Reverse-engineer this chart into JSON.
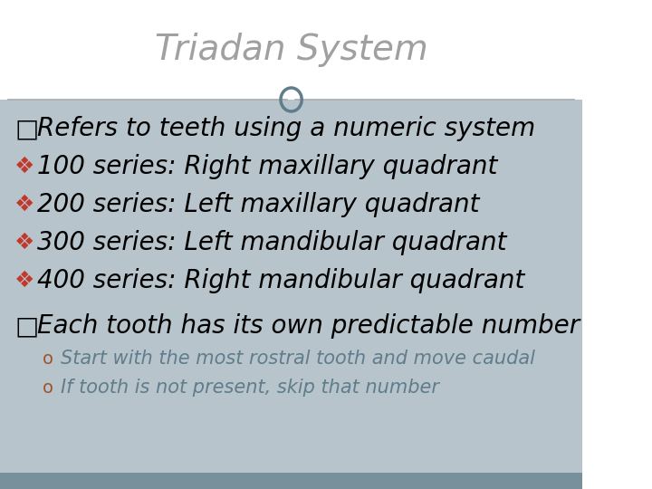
{
  "title": "Triadan System",
  "title_color": "#a0a0a0",
  "title_fontsize": 28,
  "title_font": "Georgia",
  "bg_top": "#ffffff",
  "bg_bottom": "#b0bec5",
  "footer_color": "#78909c",
  "divider_color": "#aaaaaa",
  "circle_color": "#607d8b",
  "main_bullet_color": "#000000",
  "main_bullet_fontsize": 20,
  "sub_bullet_color": "#a0522d",
  "sub_bullet_fontsize": 15,
  "bullet_diamond": "❖",
  "bullet_square": "□",
  "bullet_circle": "o",
  "main_lines": [
    "□Refers to teeth using a numeric system",
    "❖ 100 series: Right maxillary quadrant",
    "❖ 200 series: Left maxillary quadrant",
    "❖ 300 series: Left mandibular quadrant",
    "❖ 400 series: Right mandibular quadrant"
  ],
  "second_heading": "□Each tooth has its own predictable number",
  "sub_lines": [
    "Start with the most rostral tooth and move caudal",
    "If tooth is not present, skip that number"
  ],
  "sub_bullet_char": "o",
  "sub_text_color": "#607d8b"
}
